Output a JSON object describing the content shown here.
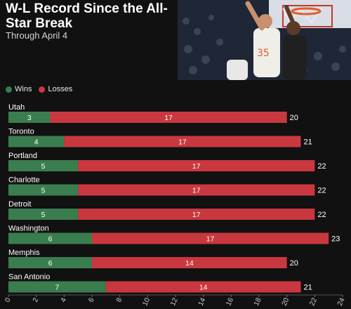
{
  "title": "W-L Record Since the All-Star Break",
  "subtitle": "Through April 4",
  "legend": {
    "wins": "Wins",
    "losses": "Losses"
  },
  "colors": {
    "wins": "#3a7d4f",
    "losses": "#c9373f",
    "background": "#111111"
  },
  "photo": {
    "subject": "basketball game action photo",
    "jersey_number": "35"
  },
  "chart_data": {
    "type": "bar",
    "orientation": "horizontal",
    "stacked": true,
    "categories": [
      "Utah",
      "Toronto",
      "Portland",
      "Charlotte",
      "Detroit",
      "Washington",
      "Memphis",
      "San Antonio"
    ],
    "series": [
      {
        "name": "Wins",
        "values": [
          3,
          4,
          5,
          5,
          5,
          6,
          6,
          7
        ]
      },
      {
        "name": "Losses",
        "values": [
          17,
          17,
          17,
          17,
          17,
          17,
          14,
          14
        ]
      }
    ],
    "totals": [
      20,
      21,
      22,
      22,
      22,
      23,
      20,
      21
    ],
    "xlim": [
      0,
      24
    ],
    "xticks": [
      0,
      2,
      4,
      6,
      8,
      10,
      12,
      14,
      16,
      18,
      20,
      22,
      24
    ],
    "legend_position": "top-left"
  }
}
